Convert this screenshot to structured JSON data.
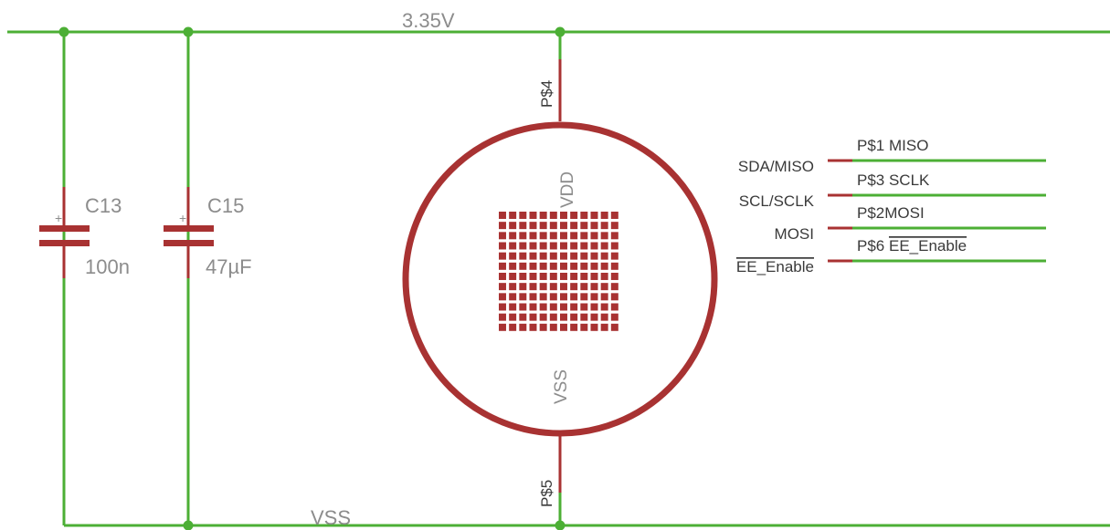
{
  "colors": {
    "wire": "#4caf35",
    "pin": "#a83232",
    "label_grey": "#8c8c8c",
    "label_dark": "#3a3a3a",
    "background": "#ffffff"
  },
  "nets": {
    "top": "3.35V",
    "bottom": "VSS"
  },
  "capacitors": [
    {
      "name": "C13",
      "value": "100n"
    },
    {
      "name": "C15",
      "value": "47µF"
    }
  ],
  "sensor": {
    "pin_top": "P$4",
    "pin_bottom": "P$5",
    "vdd_label": "VDD",
    "vss_label": "VSS",
    "grid_rows": 12,
    "grid_cols": 12
  },
  "signals": [
    {
      "left": "SDA/MISO",
      "right": "P$1 MISO",
      "overline_left": false,
      "right_prefix": "P$1 MISO",
      "right_overline": ""
    },
    {
      "left": "SCL/SCLK",
      "right": "P$3 SCLK",
      "overline_left": false,
      "right_prefix": "P$3 SCLK",
      "right_overline": ""
    },
    {
      "left": "MOSI",
      "right": "P$2MOSI",
      "overline_left": false,
      "right_prefix": "P$2MOSI",
      "right_overline": ""
    },
    {
      "left": "EE_Enable",
      "right": "P$6 EE_Enable",
      "overline_left": true,
      "right_prefix": "P$6 ",
      "right_overline": "EE_Enable"
    }
  ]
}
